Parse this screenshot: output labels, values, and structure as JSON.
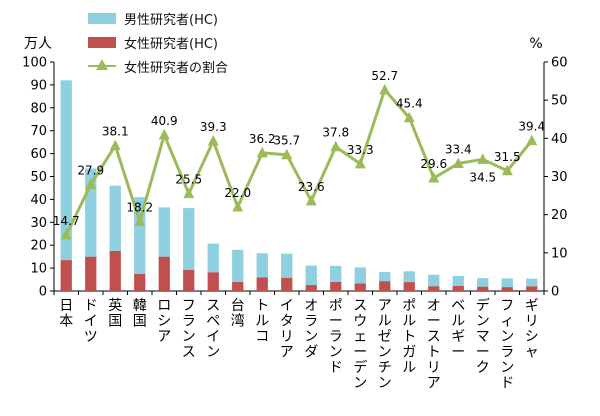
{
  "chart_data": {
    "type": "bar",
    "categories": [
      "日本",
      "ドイツ",
      "英国",
      "韓国",
      "ロシア",
      "フランス",
      "スペイン",
      "台湾",
      "トルコ",
      "イタリア",
      "オランダ",
      "ポーランド",
      "スウェーデン",
      "アルゼンチン",
      "ポルトガル",
      "オーストリア",
      "ベルギー",
      "デンマーク",
      "フィンランド",
      "ギリシャ"
    ],
    "left_axis_unit": "万人",
    "right_axis_unit": "%",
    "left_ylim": [
      0,
      100
    ],
    "left_ticks": [
      0,
      10,
      20,
      30,
      40,
      50,
      60,
      70,
      80,
      90,
      100
    ],
    "right_ylim": [
      0,
      60
    ],
    "right_ticks": [
      0,
      10,
      20,
      30,
      40,
      50,
      60
    ],
    "grid": false,
    "legend_position": "top-left",
    "series": [
      {
        "name": "男性研究者(HC)",
        "kind": "bar-stacked",
        "axis": "left",
        "color": "#8ecfe0",
        "values": [
          78.5,
          38.5,
          28.5,
          33.5,
          21.5,
          27.0,
          12.5,
          14.0,
          10.5,
          10.5,
          8.5,
          7.0,
          7.0,
          4.0,
          4.7,
          5.0,
          4.4,
          3.7,
          3.8,
          3.3
        ]
      },
      {
        "name": "女性研究者(HC)",
        "kind": "bar-stacked",
        "axis": "left",
        "color": "#c0504d",
        "values": [
          13.5,
          15.0,
          17.5,
          7.5,
          15.0,
          9.2,
          8.2,
          4.0,
          6.0,
          5.8,
          2.6,
          4.0,
          3.3,
          4.3,
          3.9,
          2.1,
          2.2,
          1.9,
          1.7,
          2.1
        ]
      },
      {
        "name": "女性研究者の割合",
        "kind": "line",
        "axis": "right",
        "color": "#9bbb59",
        "values": [
          14.7,
          27.9,
          38.1,
          18.2,
          40.9,
          25.5,
          39.3,
          22.0,
          36.2,
          35.7,
          23.6,
          37.8,
          33.3,
          52.7,
          45.4,
          29.6,
          33.4,
          34.5,
          31.5,
          39.4
        ],
        "labels": [
          "14.7",
          "27.9",
          "38.1",
          "18.2",
          "40.9",
          "25.5",
          "39.3",
          "22.0",
          "36.2",
          "35.7",
          "23.6",
          "37.8",
          "33.3",
          "52.7",
          "45.4",
          "29.6",
          "33.4",
          "34.5",
          "31.5",
          "39.4"
        ]
      }
    ]
  }
}
